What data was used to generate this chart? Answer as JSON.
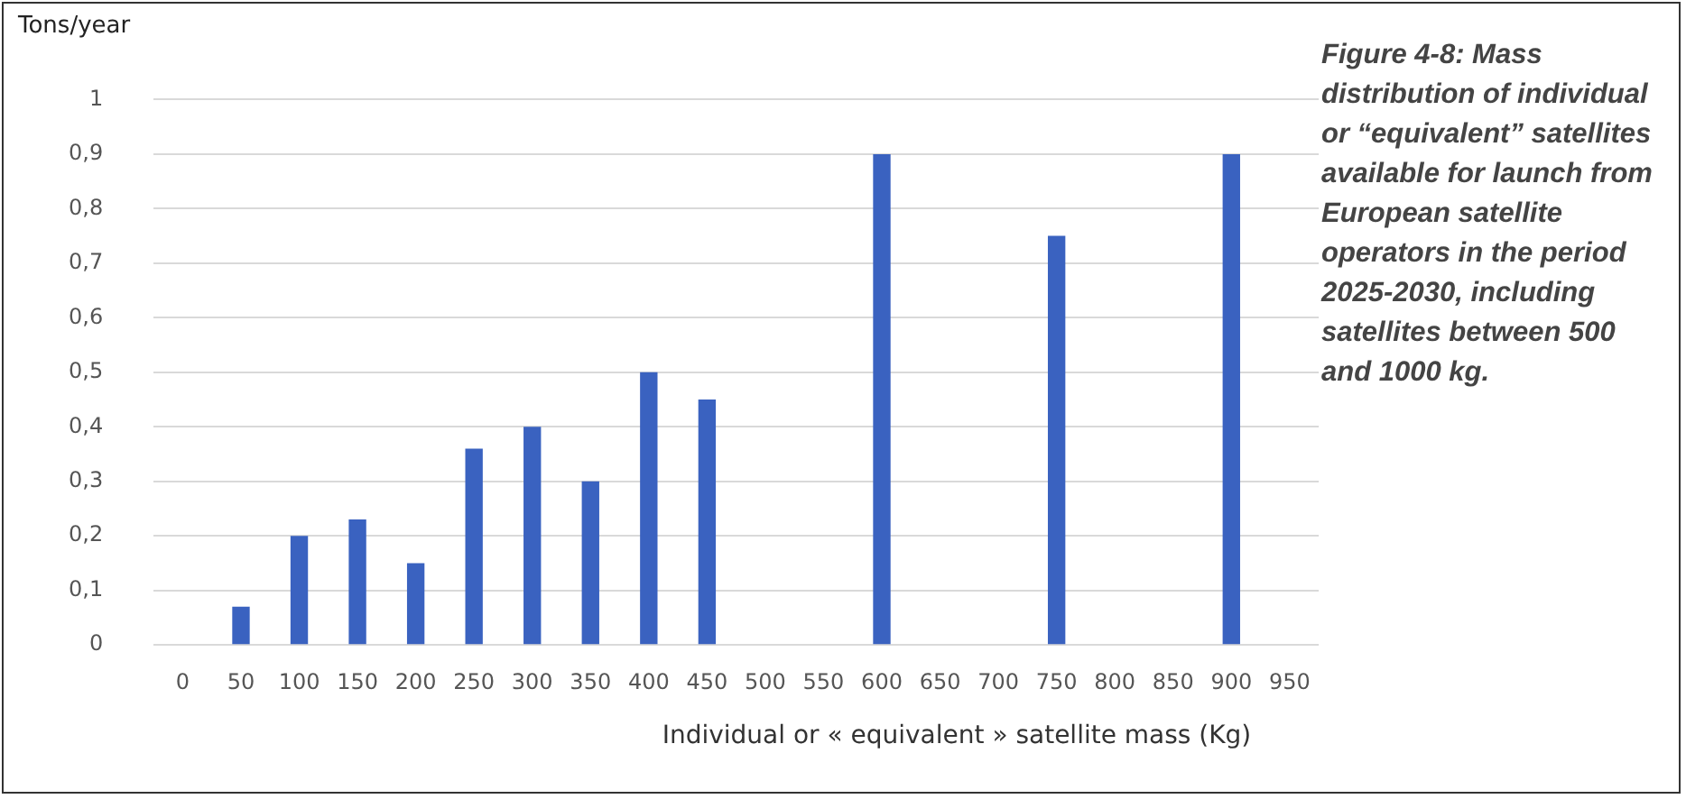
{
  "chart_data": {
    "type": "bar",
    "ylabel": "Tons/year",
    "xlabel": "Individual or « equivalent » satellite mass (Kg)",
    "annotations": [
      "Figure 4-8: Mass distribution of individual or “equivalent” satellites available for launch from European satellite operators in the period 2025-2030, including satellites between 500 and 1000 kg."
    ],
    "categories": [
      "0",
      "50",
      "100",
      "150",
      "200",
      "250",
      "300",
      "350",
      "400",
      "450",
      "500",
      "550",
      "600",
      "650",
      "700",
      "750",
      "800",
      "850",
      "900",
      "950"
    ],
    "values": [
      null,
      0.07,
      0.2,
      0.23,
      0.15,
      0.36,
      0.4,
      0.3,
      0.5,
      0.45,
      null,
      null,
      0.9,
      null,
      null,
      0.75,
      null,
      null,
      0.9,
      null
    ],
    "color": "#3a62c0",
    "ylim": [
      0,
      1
    ],
    "yticks": [
      0,
      {
        "value": 0.1,
        "label": "0,1"
      },
      {
        "value": 0.2,
        "label": "0,2"
      },
      {
        "value": 0.3,
        "label": "0,3"
      },
      {
        "value": 0.4,
        "label": "0,4"
      },
      {
        "value": 0.5,
        "label": "0,5"
      },
      {
        "value": 0.6,
        "label": "0,6"
      },
      {
        "value": 0.7,
        "label": "0,7"
      },
      {
        "value": 0.8,
        "label": "0,8"
      },
      {
        "value": 0.9,
        "label": "0,9"
      },
      1
    ],
    "grid": "y",
    "legend": false
  }
}
